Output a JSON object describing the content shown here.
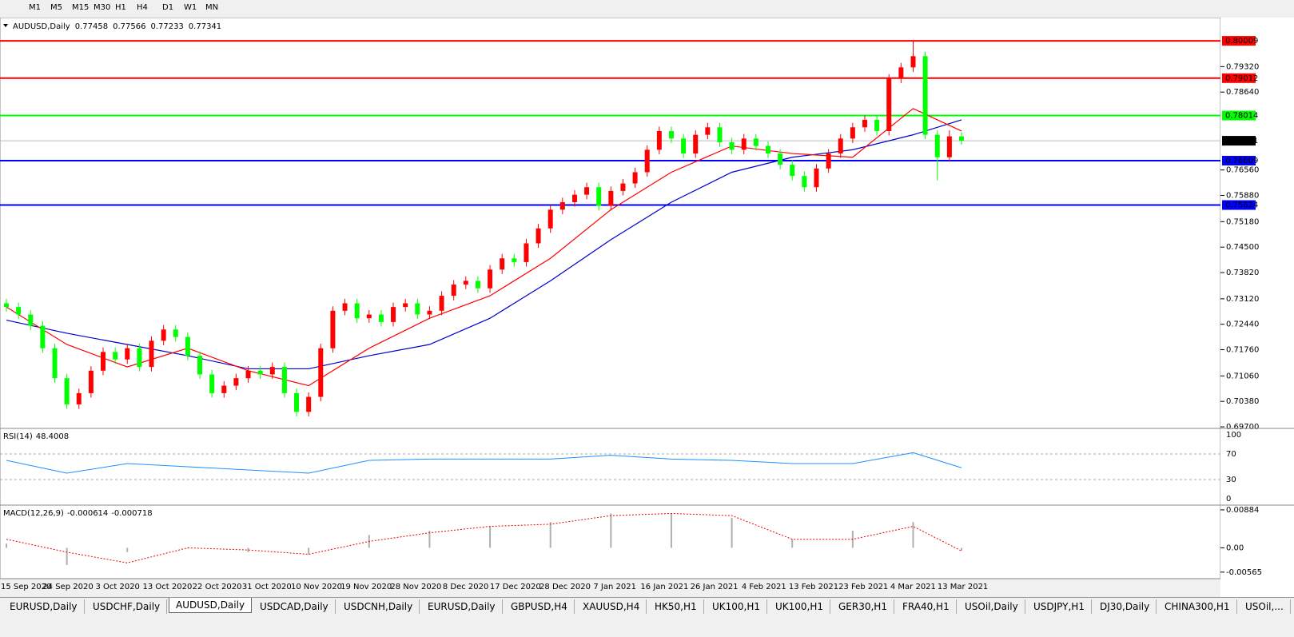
{
  "toolbar": {
    "timeframes": [
      "M1",
      "M5",
      "M15",
      "M30",
      "H1",
      "H4",
      "D1",
      "W1",
      "MN"
    ]
  },
  "chart": {
    "symbol": "AUDUSD,Daily",
    "ylim": [
      0.6968,
      0.8063
    ],
    "yticks": [
      {
        "value": 0.7932,
        "label": "0.79320"
      },
      {
        "value": 0.7864,
        "label": "0.78640"
      },
      {
        "value": 0.7656,
        "label": "0.76560"
      },
      {
        "value": 0.7588,
        "label": "0.75880"
      },
      {
        "value": 0.7518,
        "label": "0.75180"
      },
      {
        "value": 0.745,
        "label": "0.74500"
      },
      {
        "value": 0.7382,
        "label": "0.73820"
      },
      {
        "value": 0.7312,
        "label": "0.73120"
      },
      {
        "value": 0.7244,
        "label": "0.72440"
      },
      {
        "value": 0.7176,
        "label": "0.71760"
      },
      {
        "value": 0.7106,
        "label": "0.71060"
      },
      {
        "value": 0.7038,
        "label": "0.70380"
      },
      {
        "value": 0.697,
        "label": "0.69700"
      }
    ],
    "levels": [
      {
        "value": 0.80009,
        "color": "#ff0000"
      },
      {
        "value": 0.79012,
        "color": "#ff0000"
      },
      {
        "value": 0.78014,
        "color": "#00ff00"
      },
      {
        "value": 0.76809,
        "color": "#0000ff"
      },
      {
        "value": 0.75624,
        "color": "#0000ff"
      }
    ],
    "up_color": "#ff0000",
    "down_color": "#00ff00",
    "open": [
      0.73,
      0.729,
      0.727,
      0.724,
      0.718,
      0.71,
      0.703,
      0.706,
      0.712,
      0.717,
      0.715,
      0.718,
      0.713,
      0.72,
      0.723,
      0.721,
      0.716,
      0.711,
      0.706,
      0.708,
      0.71,
      0.712,
      0.711,
      0.713,
      0.706,
      0.701,
      0.705,
      0.718,
      0.728,
      0.73,
      0.726,
      0.727,
      0.725,
      0.729,
      0.73,
      0.727,
      0.728,
      0.732,
      0.735,
      0.736,
      0.734,
      0.739,
      0.742,
      0.741,
      0.746,
      0.75,
      0.755,
      0.757,
      0.759,
      0.761,
      0.756,
      0.76,
      0.762,
      0.765,
      0.771,
      0.776,
      0.774,
      0.77,
      0.775,
      0.777,
      0.773,
      0.771,
      0.774,
      0.772,
      0.77,
      0.767,
      0.764,
      0.761,
      0.766,
      0.77,
      0.774,
      0.777,
      0.779,
      0.776,
      0.79,
      0.793,
      0.796,
      0.775,
      0.769,
      0.77458
    ],
    "high": [
      0.7312,
      0.7302,
      0.7282,
      0.7252,
      0.7192,
      0.7112,
      0.7072,
      0.7132,
      0.7182,
      0.7182,
      0.7192,
      0.7192,
      0.7212,
      0.7242,
      0.7242,
      0.7222,
      0.7172,
      0.7122,
      0.7092,
      0.7112,
      0.7132,
      0.7132,
      0.7142,
      0.7142,
      0.7072,
      0.7062,
      0.7192,
      0.7292,
      0.7312,
      0.7312,
      0.7282,
      0.7282,
      0.7302,
      0.7312,
      0.7312,
      0.7292,
      0.7332,
      0.7362,
      0.7372,
      0.7372,
      0.7402,
      0.7432,
      0.7432,
      0.7472,
      0.7512,
      0.7562,
      0.7582,
      0.7602,
      0.7622,
      0.7622,
      0.7612,
      0.7632,
      0.7662,
      0.7722,
      0.7772,
      0.7772,
      0.7752,
      0.7762,
      0.7782,
      0.7782,
      0.7742,
      0.7752,
      0.7752,
      0.7732,
      0.7712,
      0.7682,
      0.7652,
      0.7672,
      0.7712,
      0.7752,
      0.7782,
      0.7802,
      0.7802,
      0.7912,
      0.7942,
      0.8001,
      0.7972,
      0.7762,
      0.7762,
      0.77566
    ],
    "low": [
      0.7278,
      0.7258,
      0.7228,
      0.7168,
      0.7088,
      0.7018,
      0.7018,
      0.7048,
      0.7108,
      0.7138,
      0.7138,
      0.7118,
      0.7118,
      0.7188,
      0.7198,
      0.7148,
      0.7098,
      0.7048,
      0.7048,
      0.7068,
      0.7088,
      0.7098,
      0.7098,
      0.7048,
      0.6998,
      0.6998,
      0.7038,
      0.7168,
      0.7268,
      0.7248,
      0.7248,
      0.7238,
      0.7238,
      0.7278,
      0.7258,
      0.7258,
      0.7268,
      0.7308,
      0.7338,
      0.7328,
      0.7328,
      0.7378,
      0.7398,
      0.7398,
      0.7448,
      0.7488,
      0.7538,
      0.7558,
      0.7578,
      0.7548,
      0.7548,
      0.7588,
      0.7608,
      0.7638,
      0.7698,
      0.7728,
      0.7688,
      0.7688,
      0.7738,
      0.7718,
      0.7698,
      0.7698,
      0.7708,
      0.7688,
      0.7658,
      0.7628,
      0.7598,
      0.7598,
      0.7648,
      0.7688,
      0.7728,
      0.7758,
      0.7748,
      0.7748,
      0.7888,
      0.7918,
      0.7738,
      0.7628,
      0.7678,
      0.77233
    ],
    "close": [
      0.729,
      0.727,
      0.724,
      0.718,
      0.71,
      0.703,
      0.706,
      0.712,
      0.717,
      0.715,
      0.718,
      0.713,
      0.72,
      0.723,
      0.721,
      0.716,
      0.711,
      0.706,
      0.708,
      0.71,
      0.712,
      0.711,
      0.713,
      0.706,
      0.701,
      0.705,
      0.718,
      0.728,
      0.73,
      0.726,
      0.727,
      0.725,
      0.729,
      0.73,
      0.727,
      0.728,
      0.732,
      0.735,
      0.736,
      0.734,
      0.739,
      0.742,
      0.741,
      0.746,
      0.75,
      0.755,
      0.757,
      0.759,
      0.761,
      0.756,
      0.76,
      0.762,
      0.765,
      0.771,
      0.776,
      0.774,
      0.77,
      0.775,
      0.777,
      0.773,
      0.771,
      0.774,
      0.772,
      0.77,
      0.767,
      0.764,
      0.761,
      0.766,
      0.77,
      0.774,
      0.777,
      0.779,
      0.776,
      0.79,
      0.793,
      0.796,
      0.775,
      0.769,
      0.77458,
      0.77341
    ],
    "ma_x": [
      0,
      5,
      10,
      15,
      20,
      25,
      30,
      35,
      40,
      45,
      50,
      55,
      60,
      65,
      70,
      75,
      79
    ],
    "ma": [
      {
        "color": "#0000cc",
        "values": [
          0.7255,
          0.722,
          0.719,
          0.716,
          0.7125,
          0.7125,
          0.716,
          0.719,
          0.726,
          0.736,
          0.747,
          0.757,
          0.765,
          0.769,
          0.771,
          0.775,
          0.779
        ]
      },
      {
        "color": "#ff0000",
        "values": [
          0.729,
          0.719,
          0.713,
          0.718,
          0.712,
          0.708,
          0.718,
          0.726,
          0.732,
          0.742,
          0.755,
          0.765,
          0.772,
          0.77,
          0.769,
          0.782,
          0.776
        ]
      }
    ],
    "dates": [
      "15 Sep 2020",
      "24 Sep 2020",
      "3 Oct 2020",
      "13 Oct 2020",
      "22 Oct 2020",
      "31 Oct 2020",
      "10 Nov 2020",
      "19 Nov 2020",
      "28 Nov 2020",
      "8 Dec 2020",
      "17 Dec 2020",
      "28 Dec 2020",
      "7 Jan 2021",
      "16 Jan 2021",
      "26 Jan 2021",
      "4 Feb 2021",
      "13 Feb 2021",
      "23 Feb 2021",
      "4 Mar 2021",
      "13 Mar 2021"
    ]
  },
  "rsi": {
    "label": "RSI(14)",
    "ylim": [
      0,
      100
    ],
    "yticks": [
      100,
      70,
      30,
      0
    ],
    "color": "#1e90ff",
    "values": [
      60,
      40,
      55,
      50,
      45,
      40,
      60,
      62,
      62,
      62,
      68,
      62,
      60,
      55,
      55,
      72,
      48.4008
    ]
  },
  "macd": {
    "label": "MACD(12,26,9)",
    "ylim": [
      -0.0068,
      0.0092
    ],
    "yticks": [
      0.00884,
      {
        "value": 0,
        "label": "0.00"
      },
      -0.00565
    ],
    "macd": [
      0.001,
      -0.004,
      -0.001,
      0.0,
      -0.001,
      -0.0015,
      0.003,
      0.004,
      0.005,
      0.006,
      0.008,
      0.008,
      0.007,
      0.002,
      0.004,
      0.006,
      -0.000614
    ],
    "signal": [
      0.002,
      -0.001,
      -0.0035,
      0.0,
      -0.0005,
      -0.0015,
      0.0015,
      0.0035,
      0.005,
      0.0055,
      0.0075,
      0.008,
      0.0075,
      0.002,
      0.002,
      0.005,
      -0.000718
    ]
  },
  "tabs": [
    "EURUSD,Daily",
    "USDCHF,Daily",
    "AUDUSD,Daily",
    "USDCAD,Daily",
    "USDCNH,Daily",
    "EURUSD,Daily",
    "GBPUSD,H4",
    "XAUUSD,H4",
    "HK50,H1",
    "UK100,H1",
    "UK100,H1",
    "GER30,H1",
    "FRA40,H1",
    "USOil,Daily",
    "USDJPY,H1",
    "DJ30,Daily",
    "CHINA300,H1",
    "USOil,..."
  ]
}
